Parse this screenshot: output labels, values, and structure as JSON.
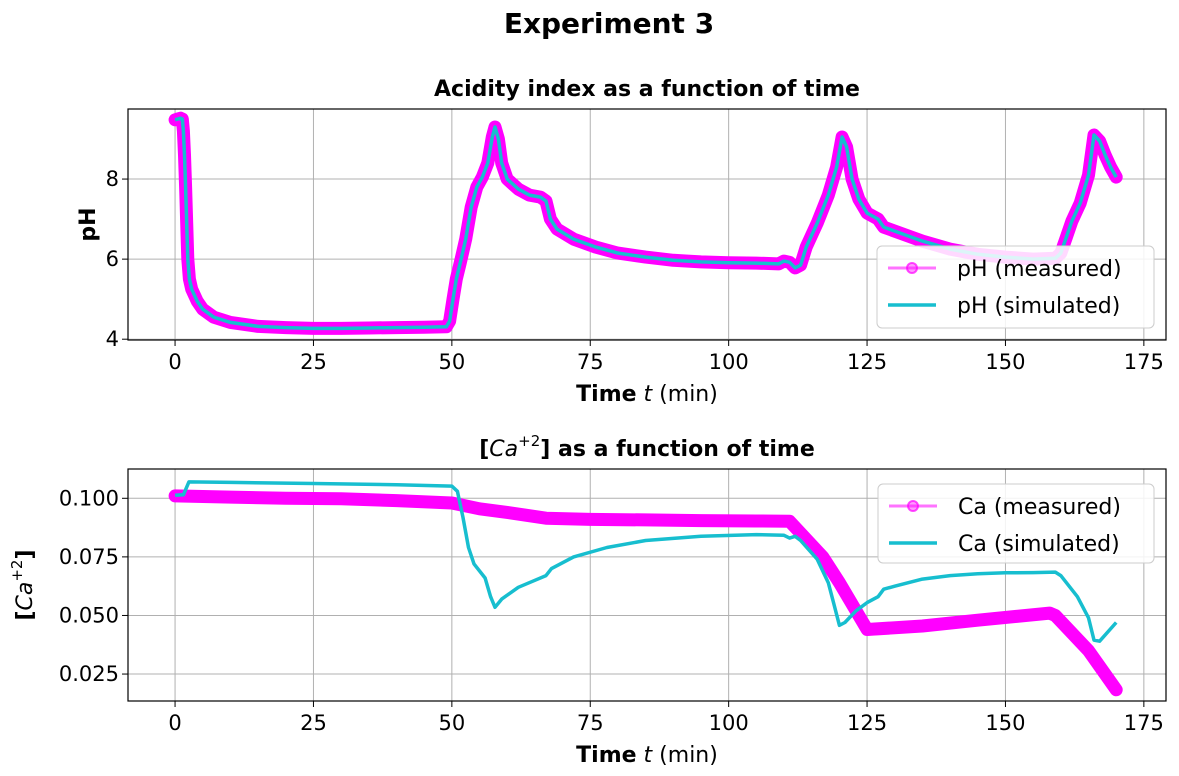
{
  "figure": {
    "title": "Experiment 3"
  },
  "chart_data": [
    {
      "type": "line",
      "title": "Acidity index as a function of time",
      "xlabel": {
        "bold": "Time",
        "italic": "t",
        "rest": " (min)"
      },
      "ylabel": "pH",
      "xlim": [
        -8.5,
        179
      ],
      "ylim": [
        3.98,
        9.75
      ],
      "xticks": [
        0,
        25,
        50,
        75,
        100,
        125,
        150,
        175
      ],
      "yticks": [
        4,
        6,
        8
      ],
      "grid": true,
      "legend": "lower-right",
      "series": [
        {
          "name": "pH (measured)",
          "color": "#ff00ff",
          "marker": "circle",
          "points": [
            [
              0,
              9.48
            ],
            [
              0.5,
              9.5
            ],
            [
              1,
              9.52
            ],
            [
              1.3,
              9.5
            ],
            [
              1.5,
              9.2
            ],
            [
              1.7,
              8.6
            ],
            [
              1.9,
              7.8
            ],
            [
              2.1,
              6.9
            ],
            [
              2.3,
              6.0
            ],
            [
              2.6,
              5.5
            ],
            [
              3,
              5.25
            ],
            [
              4,
              4.95
            ],
            [
              5,
              4.75
            ],
            [
              7,
              4.55
            ],
            [
              10,
              4.42
            ],
            [
              15,
              4.32
            ],
            [
              20,
              4.29
            ],
            [
              25,
              4.27
            ],
            [
              30,
              4.27
            ],
            [
              35,
              4.28
            ],
            [
              40,
              4.29
            ],
            [
              45,
              4.3
            ],
            [
              49,
              4.31
            ],
            [
              49.6,
              4.45
            ],
            [
              50.2,
              5.0
            ],
            [
              50.8,
              5.5
            ],
            [
              51.5,
              5.9
            ],
            [
              52.5,
              6.5
            ],
            [
              53.5,
              7.3
            ],
            [
              54.5,
              7.8
            ],
            [
              55.5,
              8.05
            ],
            [
              56.5,
              8.4
            ],
            [
              57.3,
              9.05
            ],
            [
              57.8,
              9.3
            ],
            [
              58.4,
              9.0
            ],
            [
              59,
              8.4
            ],
            [
              60,
              8.0
            ],
            [
              62,
              7.75
            ],
            [
              64,
              7.6
            ],
            [
              66,
              7.55
            ],
            [
              67,
              7.45
            ],
            [
              67.8,
              7.0
            ],
            [
              69,
              6.75
            ],
            [
              72,
              6.5
            ],
            [
              76,
              6.3
            ],
            [
              80,
              6.15
            ],
            [
              85,
              6.05
            ],
            [
              90,
              5.97
            ],
            [
              95,
              5.93
            ],
            [
              100,
              5.91
            ],
            [
              105,
              5.9
            ],
            [
              109,
              5.88
            ],
            [
              110,
              5.95
            ],
            [
              111,
              5.92
            ],
            [
              112,
              5.78
            ],
            [
              113,
              5.85
            ],
            [
              114,
              6.3
            ],
            [
              116,
              6.9
            ],
            [
              118,
              7.6
            ],
            [
              119.5,
              8.3
            ],
            [
              120.5,
              9.05
            ],
            [
              121.3,
              8.8
            ],
            [
              122.3,
              8.0
            ],
            [
              123.5,
              7.5
            ],
            [
              125,
              7.15
            ],
            [
              127,
              7.0
            ],
            [
              128,
              6.8
            ],
            [
              130,
              6.7
            ],
            [
              135,
              6.45
            ],
            [
              140,
              6.25
            ],
            [
              145,
              6.12
            ],
            [
              150,
              6.05
            ],
            [
              155,
              6.0
            ],
            [
              159,
              6.02
            ],
            [
              160,
              6.15
            ],
            [
              161,
              6.55
            ],
            [
              162,
              6.95
            ],
            [
              163.5,
              7.4
            ],
            [
              165,
              8.1
            ],
            [
              166,
              9.1
            ],
            [
              167,
              8.95
            ],
            [
              168,
              8.6
            ],
            [
              169,
              8.3
            ],
            [
              170,
              8.05
            ]
          ]
        },
        {
          "name": "pH (simulated)",
          "color": "#17becf",
          "marker": "none",
          "points": [
            [
              0,
              9.48
            ],
            [
              0.5,
              9.5
            ],
            [
              1,
              9.52
            ],
            [
              1.3,
              9.5
            ],
            [
              1.5,
              9.2
            ],
            [
              1.7,
              8.6
            ],
            [
              1.9,
              7.8
            ],
            [
              2.1,
              6.9
            ],
            [
              2.3,
              6.0
            ],
            [
              2.6,
              5.5
            ],
            [
              3,
              5.25
            ],
            [
              4,
              4.95
            ],
            [
              5,
              4.75
            ],
            [
              7,
              4.55
            ],
            [
              10,
              4.42
            ],
            [
              15,
              4.32
            ],
            [
              20,
              4.29
            ],
            [
              25,
              4.27
            ],
            [
              30,
              4.27
            ],
            [
              35,
              4.28
            ],
            [
              40,
              4.29
            ],
            [
              45,
              4.3
            ],
            [
              49,
              4.31
            ],
            [
              49.6,
              4.45
            ],
            [
              50.2,
              5.0
            ],
            [
              50.8,
              5.5
            ],
            [
              51.5,
              5.9
            ],
            [
              52.5,
              6.5
            ],
            [
              53.5,
              7.3
            ],
            [
              54.5,
              7.8
            ],
            [
              55.5,
              8.05
            ],
            [
              56.5,
              8.4
            ],
            [
              57.3,
              9.05
            ],
            [
              57.8,
              9.3
            ],
            [
              58.4,
              9.0
            ],
            [
              59,
              8.4
            ],
            [
              60,
              8.0
            ],
            [
              62,
              7.75
            ],
            [
              64,
              7.6
            ],
            [
              66,
              7.55
            ],
            [
              67,
              7.45
            ],
            [
              67.8,
              7.0
            ],
            [
              69,
              6.75
            ],
            [
              72,
              6.5
            ],
            [
              76,
              6.3
            ],
            [
              80,
              6.15
            ],
            [
              85,
              6.05
            ],
            [
              90,
              5.97
            ],
            [
              95,
              5.93
            ],
            [
              100,
              5.91
            ],
            [
              105,
              5.9
            ],
            [
              109,
              5.88
            ],
            [
              110,
              5.95
            ],
            [
              111,
              5.92
            ],
            [
              112,
              5.78
            ],
            [
              113,
              5.85
            ],
            [
              114,
              6.3
            ],
            [
              116,
              6.9
            ],
            [
              118,
              7.6
            ],
            [
              119.5,
              8.3
            ],
            [
              120.5,
              9.05
            ],
            [
              121.3,
              8.8
            ],
            [
              122.3,
              8.0
            ],
            [
              123.5,
              7.5
            ],
            [
              125,
              7.15
            ],
            [
              127,
              7.0
            ],
            [
              128,
              6.8
            ],
            [
              130,
              6.7
            ],
            [
              135,
              6.45
            ],
            [
              140,
              6.25
            ],
            [
              145,
              6.12
            ],
            [
              150,
              6.05
            ],
            [
              155,
              6.0
            ],
            [
              159,
              6.02
            ],
            [
              160,
              6.15
            ],
            [
              161,
              6.55
            ],
            [
              162,
              6.95
            ],
            [
              163.5,
              7.4
            ],
            [
              165,
              8.1
            ],
            [
              166,
              9.1
            ],
            [
              167,
              8.95
            ],
            [
              168,
              8.6
            ],
            [
              169,
              8.3
            ],
            [
              170,
              8.05
            ]
          ]
        }
      ]
    },
    {
      "type": "line",
      "title": {
        "pre": "[",
        "italic": "Ca",
        "sup": "+2",
        "post": "] as a function of time"
      },
      "xlabel": {
        "bold": "Time",
        "italic": "t",
        "rest": " (min)"
      },
      "ylabel": {
        "pre": "[",
        "italic": "Ca",
        "sup": "+2",
        "post": "]"
      },
      "xlim": [
        -8.5,
        179
      ],
      "ylim": [
        0.0135,
        0.1125
      ],
      "xticks": [
        0,
        25,
        50,
        75,
        100,
        125,
        150,
        175
      ],
      "yticks": [
        0.025,
        0.05,
        0.075,
        0.1
      ],
      "ytick_labels": [
        "0.025",
        "0.050",
        "0.075",
        "0.100"
      ],
      "grid": true,
      "legend": "upper-right",
      "series": [
        {
          "name": "Ca (measured)",
          "color": "#ff00ff",
          "marker": "circle",
          "points": [
            [
              0,
              0.101
            ],
            [
              10,
              0.1005
            ],
            [
              20,
              0.1
            ],
            [
              30,
              0.0998
            ],
            [
              40,
              0.099
            ],
            [
              50,
              0.098
            ],
            [
              55,
              0.0955
            ],
            [
              60,
              0.094
            ],
            [
              67,
              0.0915
            ],
            [
              75,
              0.091
            ],
            [
              85,
              0.0908
            ],
            [
              95,
              0.0905
            ],
            [
              105,
              0.0903
            ],
            [
              111,
              0.0902
            ],
            [
              117,
              0.075
            ],
            [
              120,
              0.064
            ],
            [
              125,
              0.044
            ],
            [
              135,
              0.0455
            ],
            [
              145,
              0.048
            ],
            [
              158,
              0.051
            ],
            [
              159,
              0.05
            ],
            [
              165,
              0.035
            ],
            [
              170,
              0.0183
            ]
          ]
        },
        {
          "name": "Ca (simulated)",
          "color": "#17becf",
          "marker": "none",
          "points": [
            [
              0,
              0.1013
            ],
            [
              1.5,
              0.1015
            ],
            [
              2.5,
              0.107
            ],
            [
              10,
              0.1068
            ],
            [
              25,
              0.1063
            ],
            [
              40,
              0.1058
            ],
            [
              50,
              0.1052
            ],
            [
              51,
              0.103
            ],
            [
              52,
              0.092
            ],
            [
              53,
              0.079
            ],
            [
              54,
              0.072
            ],
            [
              56,
              0.066
            ],
            [
              57,
              0.058
            ],
            [
              57.8,
              0.0535
            ],
            [
              59,
              0.057
            ],
            [
              62,
              0.062
            ],
            [
              65,
              0.065
            ],
            [
              67,
              0.067
            ],
            [
              68,
              0.07
            ],
            [
              72,
              0.075
            ],
            [
              78,
              0.079
            ],
            [
              85,
              0.082
            ],
            [
              95,
              0.0838
            ],
            [
              105,
              0.0845
            ],
            [
              110,
              0.0842
            ],
            [
              111,
              0.083
            ],
            [
              112,
              0.0838
            ],
            [
              113,
              0.082
            ],
            [
              116,
              0.074
            ],
            [
              118,
              0.064
            ],
            [
              119,
              0.055
            ],
            [
              120,
              0.0458
            ],
            [
              121,
              0.047
            ],
            [
              123,
              0.052
            ],
            [
              125,
              0.0555
            ],
            [
              127,
              0.058
            ],
            [
              128,
              0.0612
            ],
            [
              130,
              0.0625
            ],
            [
              135,
              0.0655
            ],
            [
              140,
              0.067
            ],
            [
              145,
              0.0678
            ],
            [
              150,
              0.0682
            ],
            [
              155,
              0.0683
            ],
            [
              159,
              0.0685
            ],
            [
              160,
              0.067
            ],
            [
              163,
              0.058
            ],
            [
              165,
              0.049
            ],
            [
              166,
              0.0395
            ],
            [
              167,
              0.039
            ],
            [
              170,
              0.047
            ]
          ]
        }
      ]
    }
  ]
}
